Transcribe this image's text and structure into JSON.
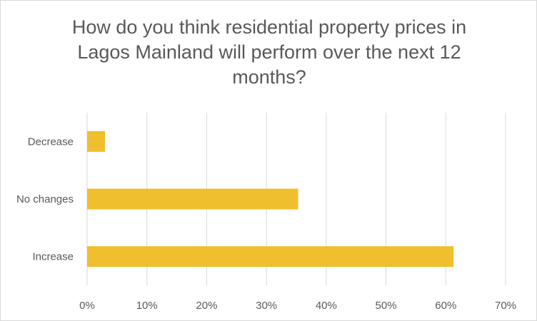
{
  "chart_data": {
    "type": "bar",
    "orientation": "horizontal",
    "title": "How do you think residential property prices in Lagos Mainland will perform over the next 12 months?",
    "categories": [
      "Decrease",
      "No changes",
      "Increase"
    ],
    "values": [
      3,
      35.3,
      61.3
    ],
    "value_unit": "%",
    "xlim": [
      0,
      70
    ],
    "x_ticks": [
      "0%",
      "10%",
      "20%",
      "30%",
      "40%",
      "50%",
      "60%",
      "70%"
    ],
    "x_tick_values": [
      0,
      10,
      20,
      30,
      40,
      50,
      60,
      70
    ],
    "grid": true,
    "legend": "none",
    "bar_color": "#F0BF2E",
    "grid_color": "#D9D9D9",
    "text_color": "#595959"
  }
}
